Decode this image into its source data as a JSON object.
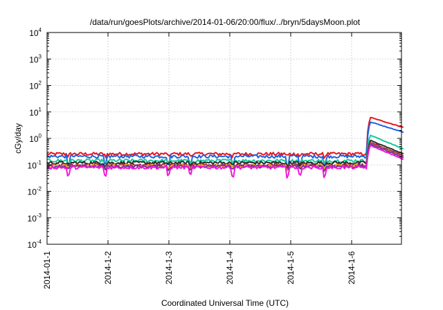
{
  "chart_data": {
    "type": "line",
    "title": "/data/run/goesPlots/archive/2014-01-06/20:00/flux/../bryn/5daysMoon.plot",
    "xlabel": "Coordinated Universal Time (UTC)",
    "ylabel": "cGy/day",
    "yscale": "log",
    "ylim_exponents": [
      -4,
      4
    ],
    "y_ticks": [
      {
        "base": "10",
        "exp": "-4"
      },
      {
        "base": "10",
        "exp": "-3"
      },
      {
        "base": "10",
        "exp": "-2"
      },
      {
        "base": "10",
        "exp": "-1"
      },
      {
        "base": "10",
        "exp": "0"
      },
      {
        "base": "10",
        "exp": "1"
      },
      {
        "base": "10",
        "exp": "2"
      },
      {
        "base": "10",
        "exp": "3"
      },
      {
        "base": "10",
        "exp": "4"
      }
    ],
    "x_range_days": [
      0,
      5.85
    ],
    "x_ticks": [
      "2014-01-1",
      "2014-1-2",
      "2014-1-3",
      "2014-1-4",
      "2014-1-5",
      "2014-1-6"
    ],
    "grid": true,
    "event": {
      "x_day": 5.25,
      "description": "step increase near 2014-1-6 ~06:00"
    },
    "series": [
      {
        "color": "#e8141e",
        "base": 0.26,
        "peak": 6.8,
        "end": 2.6,
        "dip": 0.22
      },
      {
        "color": "#1a62e0",
        "base": 0.21,
        "peak": 4.6,
        "end": 1.7,
        "dip": 0.1
      },
      {
        "color": "#18c89a",
        "base": 0.145,
        "peak": 1.5,
        "end": 0.4,
        "dip": 0.12
      },
      {
        "color": "#2a2a2a",
        "base": 0.12,
        "peak": 0.95,
        "end": 0.26,
        "dip": 0.1
      },
      {
        "color": "#9a2040",
        "base": 0.1,
        "peak": 0.8,
        "end": 0.22,
        "dip": 0.08
      },
      {
        "color": "#f0a020",
        "base": 0.092,
        "peak": 0.72,
        "end": 0.2,
        "dip": 0.075
      },
      {
        "color": "#7030a0",
        "base": 0.088,
        "peak": 0.7,
        "end": 0.19,
        "dip": 0.07
      },
      {
        "color": "#f018d8",
        "base": 0.08,
        "peak": 0.62,
        "end": 0.16,
        "dip": 0.04
      }
    ]
  }
}
